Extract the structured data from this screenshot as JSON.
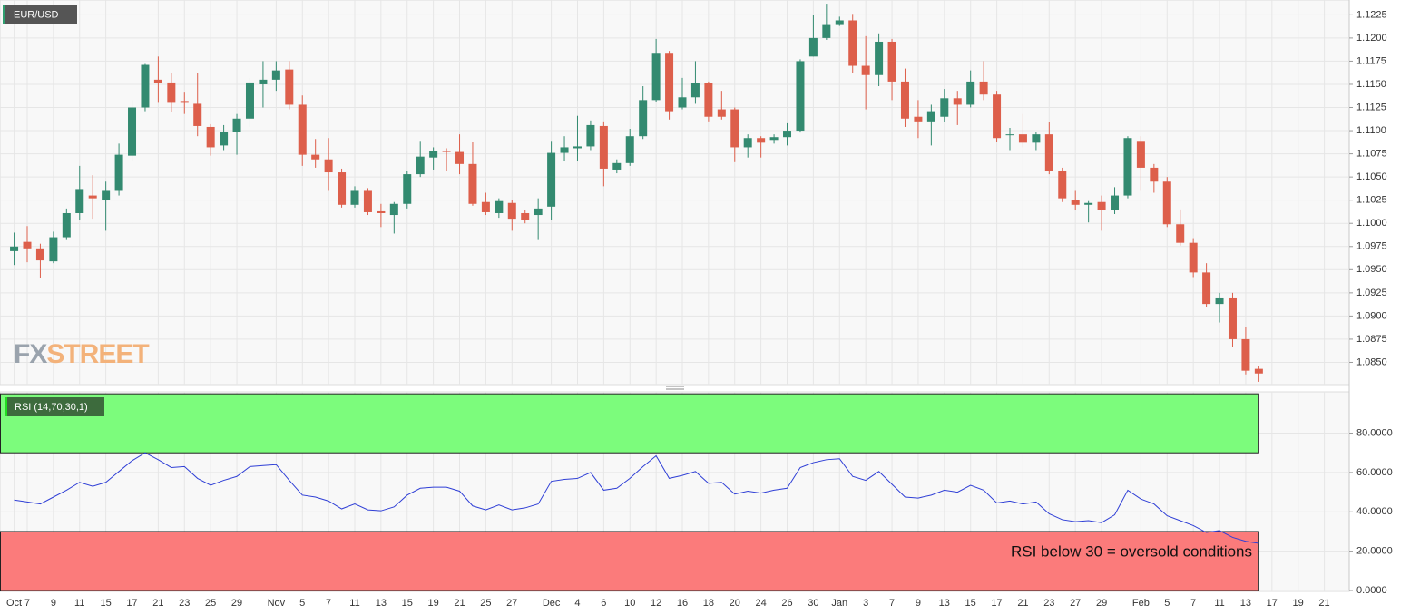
{
  "watermark": [
    "FX",
    "STREET"
  ],
  "chart_data": [
    {
      "type": "candlestick",
      "title": "EUR/USD",
      "up_color": "#338a70",
      "down_color": "#dd5f4b",
      "ylim": [
        1.0826,
        1.1241
      ],
      "yticks": [
        1.1225,
        {
          "value": 1.12,
          "label": "1.1200"
        },
        1.1175,
        {
          "value": 1.115,
          "label": "1.1150"
        },
        1.1125,
        {
          "value": 1.11,
          "label": "1.1100"
        },
        1.1075,
        {
          "value": 1.105,
          "label": "1.1050"
        },
        1.1025,
        {
          "value": 1.1,
          "label": "1.1000"
        },
        1.0975,
        {
          "value": 1.095,
          "label": "1.0950"
        },
        1.0925,
        {
          "value": 1.09,
          "label": "1.0900"
        },
        1.0875,
        {
          "value": 1.085,
          "label": "1.0850"
        }
      ],
      "grid": true,
      "open": [
        1.097,
        1.098,
        1.0973,
        1.0959,
        1.0985,
        1.1011,
        1.103,
        1.1025,
        1.1035,
        1.1073,
        1.1125,
        1.1155,
        1.1152,
        1.1132,
        1.1129,
        1.1104,
        1.1084,
        1.1099,
        1.1113,
        1.115,
        1.1155,
        1.1166,
        1.1128,
        1.1074,
        1.1069,
        1.1055,
        1.102,
        1.1035,
        1.1013,
        1.1009,
        1.1021,
        1.1053,
        1.1071,
        1.1078,
        1.1077,
        1.1064,
        1.1023,
        1.1011,
        1.1022,
        1.1011,
        1.1009,
        1.1018,
        1.1076,
        1.1081,
        1.1083,
        1.1105,
        1.1058,
        1.1065,
        1.1094,
        1.1133,
        1.1184,
        1.1125,
        1.1136,
        1.1151,
        1.1123,
        1.1123,
        1.1082,
        1.1092,
        1.109,
        1.1093,
        1.11,
        1.118,
        1.12,
        1.1214,
        1.1219,
        1.117,
        1.116,
        1.1196,
        1.1153,
        1.1115,
        1.111,
        1.1115,
        1.1135,
        1.1128,
        1.1153,
        1.1139,
        1.1095,
        1.1096,
        1.1087,
        1.1096,
        1.1057,
        1.1025,
        1.102,
        1.1023,
        1.1014,
        1.103,
        1.1089,
        1.106,
        1.1045,
        1.0999,
        1.0979,
        1.0947,
        1.0913,
        1.092,
        1.0875,
        1.0843
      ],
      "high": [
        1.099,
        1.0997,
        1.0978,
        1.0991,
        1.1016,
        1.1062,
        1.1052,
        1.1045,
        1.1086,
        1.1133,
        1.1172,
        1.118,
        1.1162,
        1.1142,
        1.1162,
        1.1107,
        1.1106,
        1.1118,
        1.1157,
        1.1175,
        1.1175,
        1.1175,
        1.1138,
        1.1091,
        1.1092,
        1.1059,
        1.104,
        1.1038,
        1.1021,
        1.1023,
        1.1057,
        1.1089,
        1.1082,
        1.1081,
        1.1096,
        1.1088,
        1.1033,
        1.1027,
        1.1025,
        1.1014,
        1.1027,
        1.1089,
        1.1094,
        1.1116,
        1.1111,
        1.111,
        1.1069,
        1.1102,
        1.1148,
        1.1199,
        1.1186,
        1.1157,
        1.1175,
        1.1153,
        1.1143,
        1.1125,
        1.1096,
        1.1094,
        1.1096,
        1.1108,
        1.1177,
        1.1225,
        1.1237,
        1.1223,
        1.1226,
        1.1202,
        1.1205,
        1.1199,
        1.1167,
        1.1133,
        1.1128,
        1.1145,
        1.1143,
        1.1165,
        1.1175,
        1.1143,
        1.1103,
        1.1118,
        1.1099,
        1.1109,
        1.106,
        1.1035,
        1.1024,
        1.103,
        1.1039,
        1.1094,
        1.1094,
        1.1064,
        1.105,
        1.1015,
        1.0984,
        1.0957,
        1.0925,
        1.0925,
        1.0888,
        1.0846
      ],
      "low": [
        1.0955,
        1.0958,
        1.0941,
        1.0957,
        1.0982,
        1.1004,
        1.1005,
        1.0992,
        1.103,
        1.1067,
        1.1121,
        1.113,
        1.112,
        1.1118,
        1.1094,
        1.1073,
        1.1079,
        1.1074,
        1.1104,
        1.1125,
        1.1143,
        1.1123,
        1.1062,
        1.106,
        1.1035,
        1.1017,
        1.1017,
        1.1009,
        1.0996,
        1.0989,
        1.1016,
        1.105,
        1.1058,
        1.1057,
        1.1053,
        1.1019,
        1.1009,
        1.1006,
        1.0992,
        1.1,
        1.0982,
        1.1004,
        1.1067,
        1.1067,
        1.1079,
        1.104,
        1.1054,
        1.1062,
        1.1091,
        1.1131,
        1.1112,
        1.1123,
        1.1129,
        1.111,
        1.1112,
        1.1066,
        1.1071,
        1.1071,
        1.1086,
        1.1084,
        1.1098,
        1.118,
        1.1198,
        1.1213,
        1.1162,
        1.1123,
        1.1148,
        1.1133,
        1.1104,
        1.1092,
        1.1084,
        1.1109,
        1.1106,
        1.1125,
        1.1133,
        1.1088,
        1.1079,
        1.1082,
        1.1079,
        1.1053,
        1.1023,
        1.1014,
        1.1001,
        1.0992,
        1.101,
        1.1027,
        1.1035,
        1.1033,
        1.0996,
        1.0976,
        1.0942,
        1.091,
        1.0893,
        1.0867,
        1.0837,
        1.0829
      ],
      "close": [
        1.0975,
        1.0973,
        1.096,
        1.0985,
        1.1011,
        1.1037,
        1.1027,
        1.1035,
        1.1074,
        1.1125,
        1.1171,
        1.1151,
        1.113,
        1.113,
        1.1105,
        1.1082,
        1.1099,
        1.1113,
        1.1152,
        1.1155,
        1.1165,
        1.1128,
        1.1074,
        1.1069,
        1.1055,
        1.102,
        1.1035,
        1.1012,
        1.1011,
        1.1021,
        1.1053,
        1.1072,
        1.1078,
        1.1077,
        1.1064,
        1.1021,
        1.1012,
        1.1024,
        1.1005,
        1.1004,
        1.1016,
        1.1076,
        1.1082,
        1.1083,
        1.1106,
        1.1059,
        1.1065,
        1.1094,
        1.1133,
        1.1184,
        1.1121,
        1.1136,
        1.1151,
        1.1115,
        1.1115,
        1.1082,
        1.1092,
        1.1087,
        1.1093,
        1.11,
        1.1175,
        1.12,
        1.1214,
        1.1219,
        1.117,
        1.116,
        1.1196,
        1.1153,
        1.1113,
        1.111,
        1.1121,
        1.1135,
        1.1128,
        1.1153,
        1.1139,
        1.1092,
        1.1096,
        1.1087,
        1.1096,
        1.1057,
        1.1027,
        1.102,
        1.1022,
        1.1014,
        1.103,
        1.1092,
        1.106,
        1.1045,
        1.0999,
        1.0979,
        1.0947,
        1.0913,
        1.092,
        1.0875,
        1.0841,
        1.0838
      ]
    },
    {
      "type": "line",
      "title": "RSI (14,70,30,1)",
      "annotation": "RSI below 30 = oversold conditions",
      "categories": [
        "Oct",
        "7",
        null,
        "9",
        null,
        "11",
        null,
        "15",
        null,
        "17",
        null,
        "21",
        null,
        "23",
        null,
        "25",
        null,
        "29",
        null,
        null,
        "Nov",
        null,
        "5",
        null,
        "7",
        null,
        "11",
        null,
        "13",
        null,
        "15",
        null,
        "19",
        null,
        "21",
        null,
        "25",
        null,
        "27",
        null,
        null,
        "Dec",
        null,
        "4",
        null,
        "6",
        null,
        "10",
        null,
        "12",
        null,
        "16",
        null,
        "18",
        null,
        "20",
        null,
        "24",
        null,
        "26",
        null,
        "30",
        null,
        "Jan",
        null,
        "3",
        null,
        "7",
        null,
        "9",
        null,
        "13",
        null,
        "15",
        null,
        "17",
        null,
        "21",
        null,
        "23",
        null,
        "27",
        null,
        "29",
        null,
        null,
        "Feb",
        null,
        "5",
        null,
        "7",
        null,
        "11",
        null,
        "13",
        null,
        "17",
        null,
        "19",
        null,
        "21"
      ],
      "series": [
        {
          "name": "RSI",
          "color": "#2f3fd6",
          "values": [
            46,
            45,
            44,
            47.5,
            51,
            55,
            53,
            55,
            60.5,
            66,
            70,
            66.5,
            62.5,
            63,
            57,
            53.5,
            56,
            58,
            63,
            63.5,
            64,
            56,
            48.5,
            47.5,
            45.5,
            41.5,
            44,
            41,
            40.5,
            42.5,
            48.5,
            52,
            52.5,
            52.5,
            50.5,
            43,
            41,
            43.5,
            41,
            42,
            44,
            55.5,
            56.5,
            57,
            60,
            51,
            52,
            57,
            63,
            68.5,
            57,
            58.5,
            60.5,
            54.5,
            55,
            49,
            50.5,
            49.5,
            51,
            52,
            62.5,
            65,
            66.5,
            67,
            58,
            56,
            60.5,
            54,
            47.5,
            47,
            48.5,
            51,
            50,
            53.5,
            51,
            44.5,
            45.5,
            44,
            45,
            39,
            36,
            35,
            35.5,
            34.5,
            38.5,
            51,
            46.5,
            44,
            38,
            35.5,
            33,
            29.5,
            30.5,
            27,
            25,
            24,
            null,
            null,
            null,
            null,
            null
          ]
        }
      ],
      "bands": [
        {
          "from": 70,
          "to": 100,
          "color": "#7cfc7c"
        },
        {
          "from": 0,
          "to": 30,
          "color": "#fb7b7b"
        }
      ],
      "ylim": [
        0,
        101
      ],
      "yticks": [
        {
          "value": 80,
          "label": "80.0000"
        },
        {
          "value": 60,
          "label": "60.0000"
        },
        {
          "value": 40,
          "label": "40.0000"
        },
        {
          "value": 20,
          "label": "20.0000"
        },
        {
          "value": 0,
          "label": "0.0000"
        }
      ],
      "grid": true
    }
  ]
}
